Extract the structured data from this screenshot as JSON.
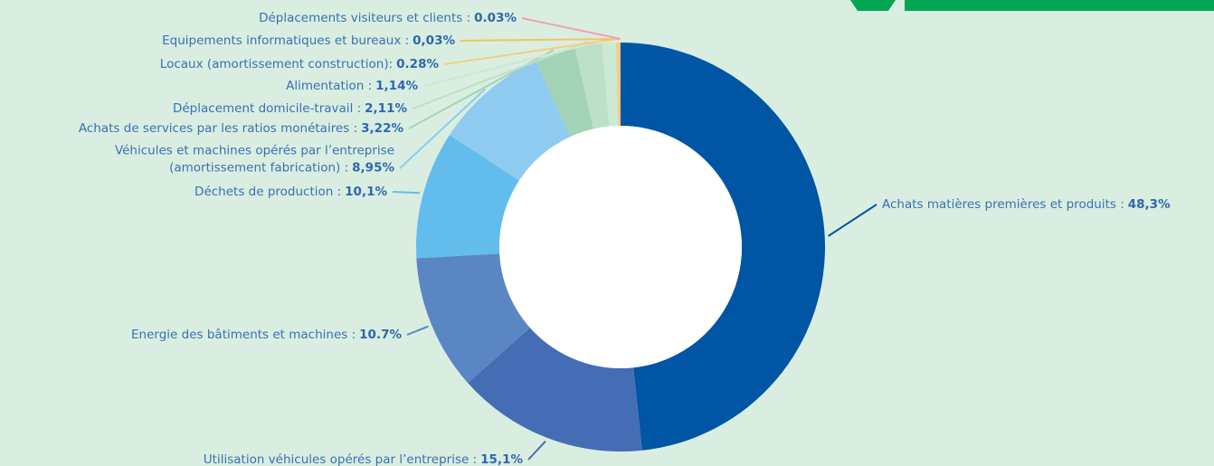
{
  "chart_data": {
    "type": "donut",
    "categories": [
      "Achats matières premières et produits :",
      "Utilisation véhicules opérés par l’entreprise :",
      "Energie des bâtiments et machines :",
      "Déchets de production :",
      "Véhicules et machines opérés par l’entreprise\n(amortissement fabrication) :",
      "Achats de services par les ratios monétaires :",
      "Déplacement domicile-travail :",
      "Alimentation :",
      "Locaux (amortissement construction):",
      "Equipements informatiques et bureaux :",
      "Déplacements visiteurs et clients :"
    ],
    "values": [
      48.3,
      15.1,
      10.7,
      10.1,
      8.95,
      3.22,
      2.11,
      1.14,
      0.28,
      0.03,
      0.03
    ],
    "value_labels": [
      "48,3%",
      "15,1%",
      "10.7%",
      "10,1%",
      "8,95%",
      "3,22%",
      "2,11%",
      "1,14%",
      "0.28%",
      "0,03%",
      "0.03%"
    ],
    "colors": [
      "#0055a4",
      "#456db5",
      "#5b86c4",
      "#63bdec",
      "#8fcaf0",
      "#a3d3b6",
      "#bde0c8",
      "#cbe9d4",
      "#f5cd80",
      "#f2c462",
      "#f2a0b4"
    ]
  }
}
